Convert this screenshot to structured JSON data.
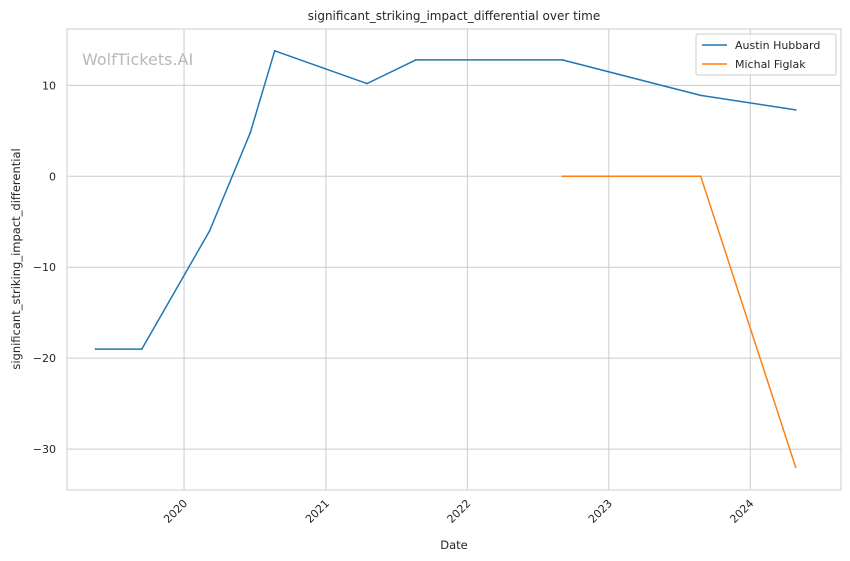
{
  "watermark": "WolfTickets.AI",
  "chart_data": {
    "type": "line",
    "title": "significant_striking_impact_differential over time",
    "xlabel": "Date",
    "ylabel": "significant_striking_impact_differential",
    "xlim": [
      "2019-03-05",
      "2024-08-22"
    ],
    "ylim": [
      -34.5,
      16.2
    ],
    "x_ticks": [
      "2020-01-01",
      "2021-01-01",
      "2022-01-01",
      "2023-01-01",
      "2024-01-01"
    ],
    "x_tick_labels": [
      "2020",
      "2021",
      "2022",
      "2023",
      "2024"
    ],
    "y_ticks": [
      10,
      0,
      -10,
      -20,
      -30
    ],
    "y_tick_labels": [
      "10",
      "0",
      "−10",
      "−20",
      "−30"
    ],
    "grid": true,
    "legend_position": "top-right",
    "series": [
      {
        "name": "Austin Hubbard",
        "color": "#1f77b4",
        "points": [
          {
            "x": "2019-05-18",
            "y": -19
          },
          {
            "x": "2019-09-14",
            "y": -19
          },
          {
            "x": "2020-03-07",
            "y": -6
          },
          {
            "x": "2020-06-20",
            "y": 4.8
          },
          {
            "x": "2020-08-22",
            "y": 13.8
          },
          {
            "x": "2021-04-17",
            "y": 10.2
          },
          {
            "x": "2021-08-21",
            "y": 12.8
          },
          {
            "x": "2022-09-03",
            "y": 12.8
          },
          {
            "x": "2023-08-26",
            "y": 8.9
          },
          {
            "x": "2024-04-27",
            "y": 7.3
          }
        ]
      },
      {
        "name": "Michal Figlak",
        "color": "#ff7f0e",
        "points": [
          {
            "x": "2022-09-03",
            "y": 0
          },
          {
            "x": "2023-08-26",
            "y": 0
          },
          {
            "x": "2024-04-27",
            "y": -32
          }
        ]
      }
    ]
  }
}
